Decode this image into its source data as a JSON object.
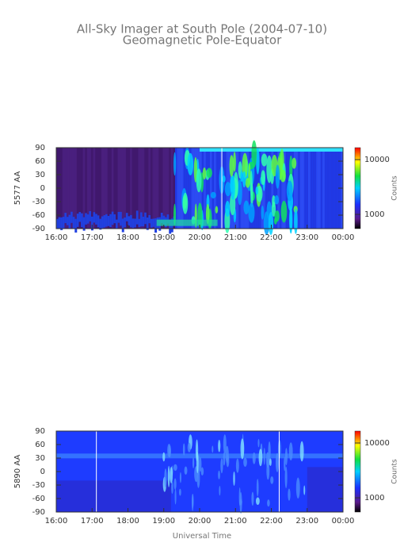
{
  "title": "All-Sky Imager at South Pole (2004-07-10)",
  "subtitle": "Geomagnetic Pole-Equator",
  "x_label": "Universal Time",
  "charts": [
    {
      "type": "heatmap",
      "y_label": "5577 AA",
      "colorbar_label": "Counts",
      "xlim": [
        16,
        24
      ],
      "xticks": [
        {
          "value": 16,
          "label": "16:00"
        },
        {
          "value": 17,
          "label": "17:00"
        },
        {
          "value": 18,
          "label": "18:00"
        },
        {
          "value": 19,
          "label": "19:00"
        },
        {
          "value": 20,
          "label": "20:00"
        },
        {
          "value": 21,
          "label": "21:00"
        },
        {
          "value": 22,
          "label": "22:00"
        },
        {
          "value": 23,
          "label": "23:00"
        },
        {
          "value": 24,
          "label": "00:00"
        }
      ],
      "ylim": [
        -90,
        90
      ],
      "yticks": [
        90,
        60,
        30,
        0,
        -30,
        -60,
        -90
      ],
      "clim": [
        550,
        16500
      ],
      "clog": true,
      "cticks": [
        10000,
        1000
      ]
    },
    {
      "type": "heatmap",
      "y_label": "5890 AA",
      "colorbar_label": "Counts",
      "xlim": [
        16,
        24
      ],
      "xticks": [
        {
          "value": 16,
          "label": "16:00"
        },
        {
          "value": 17,
          "label": "17:00"
        },
        {
          "value": 18,
          "label": "18:00"
        },
        {
          "value": 19,
          "label": "19:00"
        },
        {
          "value": 20,
          "label": "20:00"
        },
        {
          "value": 21,
          "label": "21:00"
        },
        {
          "value": 22,
          "label": "22:00"
        },
        {
          "value": 23,
          "label": "23:00"
        },
        {
          "value": 24,
          "label": "00:00"
        }
      ],
      "ylim": [
        -90,
        90
      ],
      "yticks": [
        90,
        60,
        30,
        0,
        -30,
        -60,
        -90
      ],
      "clim": [
        550,
        16500
      ],
      "clog": true,
      "cticks": [
        10000,
        1000
      ]
    }
  ]
}
